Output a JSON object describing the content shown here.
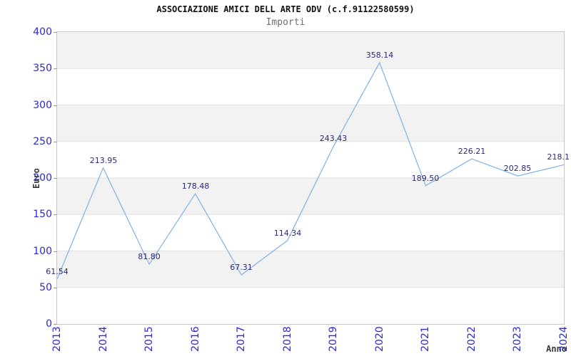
{
  "chart_data": {
    "type": "line",
    "title": "ASSOCIAZIONE AMICI DELL ARTE ODV (c.f.91122580599)",
    "subtitle": "Importi",
    "xlabel": "Anno",
    "ylabel": "Euro",
    "x": [
      "2013",
      "2014",
      "2015",
      "2016",
      "2017",
      "2018",
      "2019",
      "2020",
      "2021",
      "2022",
      "2023",
      "2024"
    ],
    "values": [
      61.54,
      213.95,
      81.8,
      178.48,
      67.31,
      114.34,
      243.43,
      358.14,
      189.5,
      226.21,
      202.85,
      218.1
    ],
    "point_labels": [
      "61.54",
      "213.95",
      "81.80",
      "178.48",
      "67.31",
      "114.34",
      "243.43",
      "358.14",
      "189.50",
      "226.21",
      "202.85",
      "218.1"
    ],
    "ylim": [
      0,
      400
    ],
    "yticks": [
      0,
      50,
      100,
      150,
      200,
      250,
      300,
      350,
      400
    ],
    "grid": "horizontal-bands-every-50",
    "legend": "none",
    "colors": {
      "line": "#7db0e6",
      "axis_tick_labels": "#2a2ad2",
      "point_labels": "#29297a",
      "band_fill": "#f2f2f2",
      "grid_line": "#e2e2e2",
      "plot_border": "#c8c8c8",
      "title": "#111111",
      "subtitle": "#6e6e6e",
      "axis_titles": "#3a3a3a"
    }
  }
}
